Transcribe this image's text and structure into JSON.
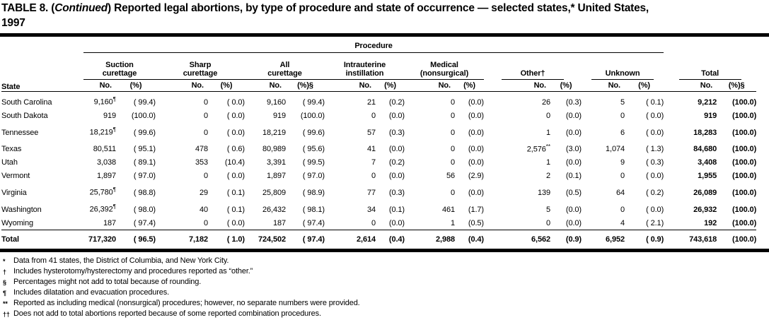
{
  "title": {
    "line1_pre": "TABLE 8. (",
    "line1_italic": "Continued",
    "line1_post": ") Reported legal abortions, by type of procedure and state of occurrence — selected states,* United States,",
    "line2": "1997"
  },
  "table": {
    "procedure_header": "Procedure",
    "state_header": "State",
    "groups": [
      {
        "label": "Suction curettage",
        "no": "No.",
        "pct": "(%)"
      },
      {
        "label": "Sharp curettage",
        "no": "No.",
        "pct": "(%)"
      },
      {
        "label": "All curettage",
        "no": "No.",
        "pct": "(%)§"
      },
      {
        "label": "Intrauterine instillation",
        "no": "No.",
        "pct": "(%)"
      },
      {
        "label": "Medical (nonsurgical)",
        "no": "No.",
        "pct": "(%)"
      },
      {
        "label": "Other†",
        "no": "No.",
        "pct": "(%)"
      },
      {
        "label": "Unknown",
        "no": "No.",
        "pct": "(%)"
      },
      {
        "label": "Total",
        "no": "No.",
        "pct": "(%)§"
      }
    ],
    "rows": [
      {
        "state": "South Carolina",
        "cells": [
          "9,160¶",
          "( 99.4)",
          "0",
          "( 0.0)",
          "9,160",
          "( 99.4)",
          "21",
          "(0.2)",
          "0",
          "(0.0)",
          "26",
          "(0.3)",
          "5",
          "( 0.1)",
          "9,212",
          "(100.0)"
        ]
      },
      {
        "state": "South Dakota",
        "cells": [
          "919",
          "(100.0)",
          "0",
          "( 0.0)",
          "919",
          "(100.0)",
          "0",
          "(0.0)",
          "0",
          "(0.0)",
          "0",
          "(0.0)",
          "0",
          "( 0.0)",
          "919",
          "(100.0)"
        ]
      },
      {
        "state": "Tennessee",
        "cells": [
          "18,219¶",
          "( 99.6)",
          "0",
          "( 0.0)",
          "18,219",
          "( 99.6)",
          "57",
          "(0.3)",
          "0",
          "(0.0)",
          "1",
          "(0.0)",
          "6",
          "( 0.0)",
          "18,283",
          "(100.0)"
        ]
      },
      {
        "state": "Texas",
        "cells": [
          "80,511",
          "( 95.1)",
          "478",
          "( 0.6)",
          "80,989",
          "( 95.6)",
          "41",
          "(0.0)",
          "0",
          "(0.0)",
          "2,576**",
          "(3.0)",
          "1,074",
          "( 1.3)",
          "84,680",
          "(100.0)"
        ]
      },
      {
        "state": "Utah",
        "cells": [
          "3,038",
          "( 89.1)",
          "353",
          "(10.4)",
          "3,391",
          "( 99.5)",
          "7",
          "(0.2)",
          "0",
          "(0.0)",
          "1",
          "(0.0)",
          "9",
          "( 0.3)",
          "3,408",
          "(100.0)"
        ]
      },
      {
        "state": "Vermont",
        "cells": [
          "1,897",
          "( 97.0)",
          "0",
          "( 0.0)",
          "1,897",
          "( 97.0)",
          "0",
          "(0.0)",
          "56",
          "(2.9)",
          "2",
          "(0.1)",
          "0",
          "( 0.0)",
          "1,955",
          "(100.0)"
        ]
      },
      {
        "state": "Virginia",
        "cells": [
          "25,780¶",
          "( 98.8)",
          "29",
          "( 0.1)",
          "25,809",
          "( 98.9)",
          "77",
          "(0.3)",
          "0",
          "(0.0)",
          "139",
          "(0.5)",
          "64",
          "( 0.2)",
          "26,089",
          "(100.0)"
        ]
      },
      {
        "state": "Washington",
        "cells": [
          "26,392¶",
          "( 98.0)",
          "40",
          "( 0.1)",
          "26,432",
          "( 98.1)",
          "34",
          "(0.1)",
          "461",
          "(1.7)",
          "5",
          "(0.0)",
          "0",
          "( 0.0)",
          "26,932",
          "(100.0)"
        ]
      },
      {
        "state": "Wyoming",
        "cells": [
          "187",
          "( 97.4)",
          "0",
          "( 0.0)",
          "187",
          "( 97.4)",
          "0",
          "(0.0)",
          "1",
          "(0.5)",
          "0",
          "(0.0)",
          "4",
          "( 2.1)",
          "192",
          "(100.0)"
        ]
      }
    ],
    "total_row": {
      "state": "Total",
      "cells": [
        "717,320",
        "( 96.5)",
        "7,182",
        "( 1.0)",
        "724,502",
        "( 97.4)",
        "2,614",
        "(0.4)",
        "2,988",
        "(0.4)",
        "6,562",
        "(0.9)",
        "6,952",
        "( 0.9)",
        "743,618",
        "(100.0)"
      ]
    }
  },
  "footnotes": [
    {
      "marker": "*",
      "text": "Data from 41 states, the District of Columbia, and New York City."
    },
    {
      "marker": "†",
      "text": "Includes hysterotomy/hysterectomy and procedures reported as “other.”"
    },
    {
      "marker": "§",
      "text": "Percentages might not add to total because of rounding."
    },
    {
      "marker": "¶",
      "text": "Includes dilatation and evacuation procedures."
    },
    {
      "marker": "**",
      "text": "Reported as including medical (nonsurgical) procedures; however, no separate numbers were provided."
    },
    {
      "marker": "††",
      "text": "Does not add to total abortions reported because of some reported combination procedures."
    }
  ]
}
